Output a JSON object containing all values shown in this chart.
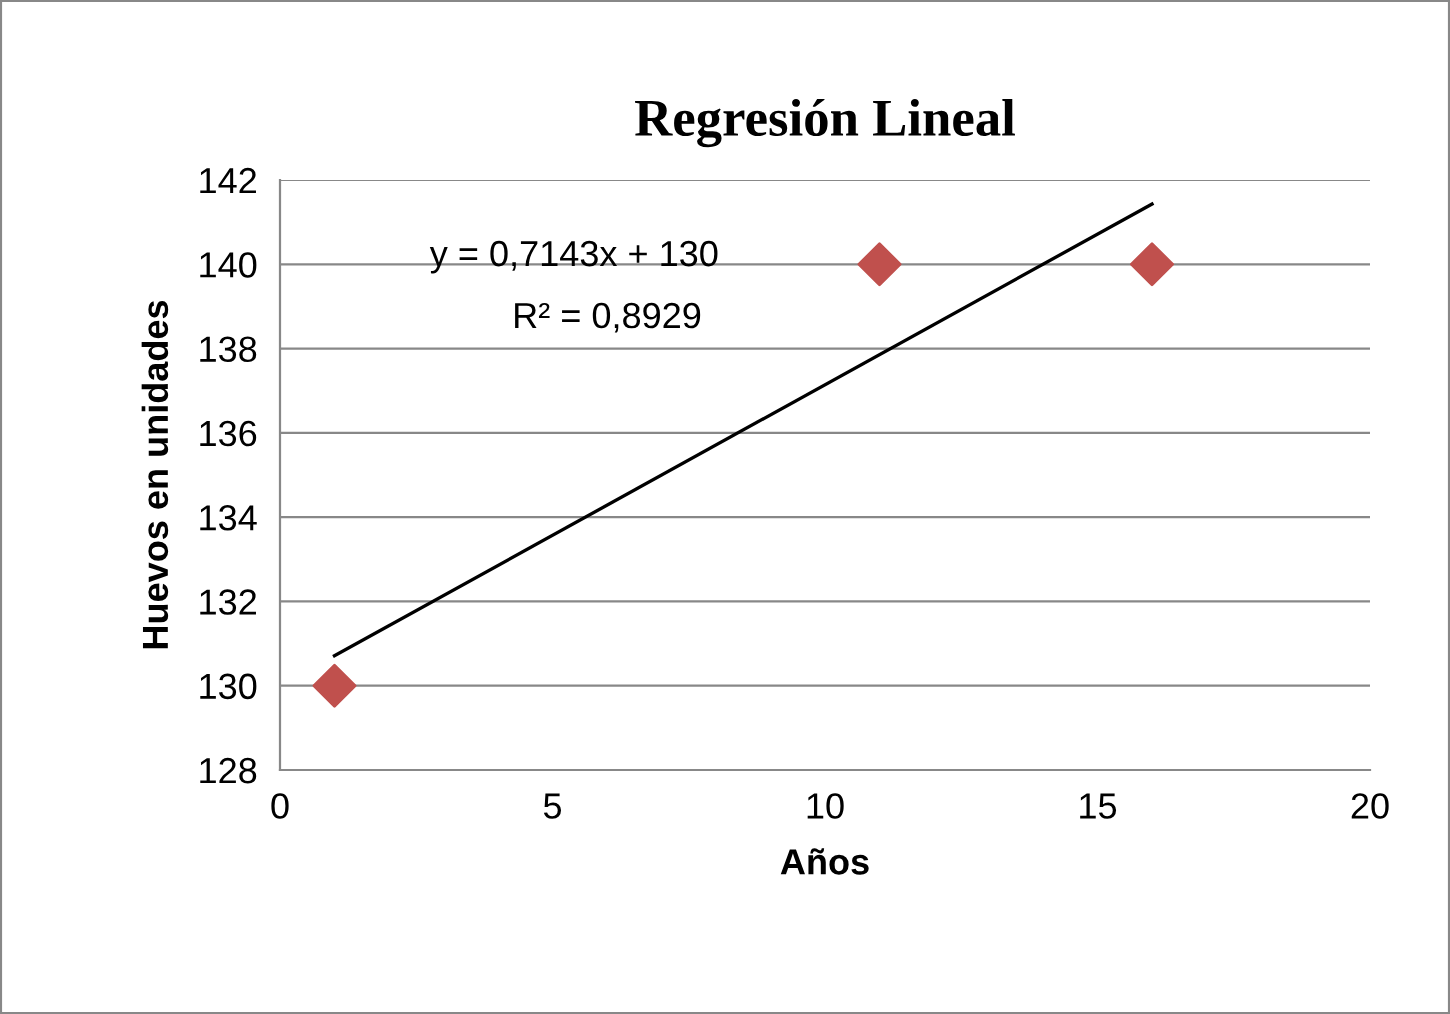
{
  "chart_data": {
    "type": "scatter",
    "title": "Regresión Lineal",
    "xlabel": "Años",
    "ylabel": "Huevos en unidades",
    "series": [
      {
        "x": [
          1,
          11,
          16
        ],
        "values": [
          130,
          140,
          140
        ],
        "color": "#c0504d",
        "marker": "diamond"
      },
      {
        "type": "line",
        "x": [
          1,
          16
        ],
        "values": [
          130.71,
          141.43
        ],
        "color": "#000000",
        "marker": "none",
        "line_style": "solid"
      }
    ],
    "xlim": [
      0,
      20
    ],
    "xticks": [
      0,
      5,
      10,
      15,
      20
    ],
    "ylim": [
      128,
      142
    ],
    "yticks": [
      128,
      130,
      132,
      134,
      136,
      138,
      140,
      142
    ],
    "grid": "y",
    "legend": false,
    "annotations": [
      "y = 0,7143x + 130",
      "R² = 0,8929"
    ]
  }
}
